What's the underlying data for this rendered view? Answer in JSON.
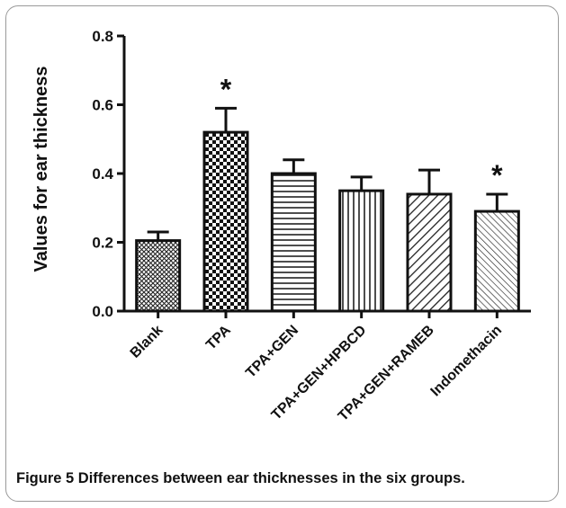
{
  "figure": {
    "number_label": "Figure 5",
    "caption_text": "Differences between ear thicknesses in the six groups."
  },
  "chart_data": {
    "type": "bar",
    "title": "",
    "xlabel": "",
    "ylabel": "Values for ear thickness",
    "ylim": [
      0.0,
      0.8
    ],
    "yticks": [
      "0.0",
      "0.2",
      "0.4",
      "0.6",
      "0.8"
    ],
    "ytick_values": [
      0.0,
      0.2,
      0.4,
      0.6,
      0.8
    ],
    "categories": [
      "Blank",
      "TPA",
      "TPA+GEN",
      "TPA+GEN+HPBCD",
      "TPA+GEN+RAMEB",
      "Indomethacin"
    ],
    "values": [
      0.205,
      0.52,
      0.4,
      0.35,
      0.34,
      0.29
    ],
    "errors": [
      0.025,
      0.07,
      0.04,
      0.04,
      0.07,
      0.05
    ],
    "patterns": [
      "crosshatch-fine",
      "checkerboard",
      "horizontal-lines",
      "vertical-lines",
      "diagonal-wide",
      "diagonal-fine"
    ],
    "annotations": [
      "",
      "*",
      "",
      "",
      "",
      "*"
    ],
    "grid": false,
    "legend": "none",
    "colors": {
      "bar_fill": "#ffffff",
      "stroke": "#111111"
    }
  }
}
